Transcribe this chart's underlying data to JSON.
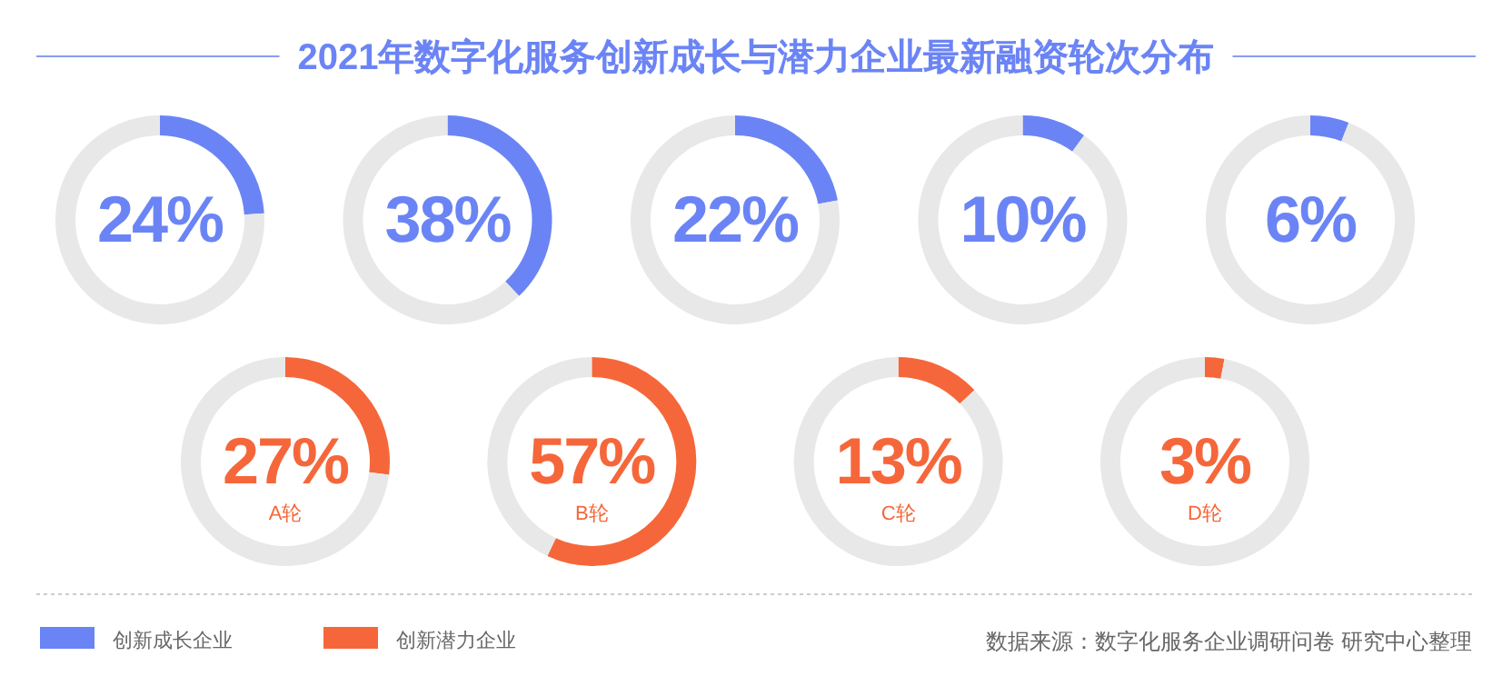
{
  "chart_data": [
    {
      "type": "other",
      "title": "2021年数字化服务创新成长与潜力企业最新融资轮次分布",
      "series": [
        {
          "name": "创新成长企业",
          "color": "#6b84f5"
        },
        {
          "name": "创新潜力企业",
          "color": "#f5673a"
        }
      ],
      "legend": "bottom left",
      "annotations": [
        "数据来源：数字化服务企业调研问卷 研究中心整理"
      ]
    },
    {
      "type": "donut",
      "categories": [
        null,
        null
      ],
      "values": [
        24,
        76
      ],
      "colors": [
        "#6b84f5",
        "#e8e8e8"
      ],
      "value_labels": [
        "24%",
        null
      ]
    },
    {
      "type": "donut",
      "categories": [
        null,
        null
      ],
      "values": [
        38,
        62
      ],
      "colors": [
        "#6b84f5",
        "#e8e8e8"
      ],
      "value_labels": [
        "38%",
        null
      ]
    },
    {
      "type": "donut",
      "categories": [
        null,
        null
      ],
      "values": [
        22,
        78
      ],
      "colors": [
        "#6b84f5",
        "#e8e8e8"
      ],
      "value_labels": [
        "22%",
        null
      ]
    },
    {
      "type": "donut",
      "categories": [
        null,
        null
      ],
      "values": [
        10,
        90
      ],
      "colors": [
        "#6b84f5",
        "#e8e8e8"
      ],
      "value_labels": [
        "10%",
        null
      ]
    },
    {
      "type": "donut",
      "categories": [
        null,
        null
      ],
      "values": [
        6,
        94
      ],
      "colors": [
        "#6b84f5",
        "#e8e8e8"
      ],
      "value_labels": [
        "6%",
        null
      ]
    },
    {
      "type": "donut",
      "categories": [
        "A轮",
        null
      ],
      "values": [
        27,
        73
      ],
      "colors": [
        "#f5673a",
        "#e8e8e8"
      ],
      "value_labels": [
        "27%",
        null
      ]
    },
    {
      "type": "donut",
      "categories": [
        "B轮",
        null
      ],
      "values": [
        57,
        43
      ],
      "colors": [
        "#f5673a",
        "#e8e8e8"
      ],
      "value_labels": [
        "57%",
        null
      ]
    },
    {
      "type": "donut",
      "categories": [
        "C轮",
        null
      ],
      "values": [
        13,
        87
      ],
      "colors": [
        "#f5673a",
        "#e8e8e8"
      ],
      "value_labels": [
        "13%",
        null
      ]
    },
    {
      "type": "donut",
      "categories": [
        "D轮",
        null
      ],
      "values": [
        3,
        97
      ],
      "colors": [
        "#f5673a",
        "#e8e8e8"
      ],
      "value_labels": [
        "3%",
        null
      ]
    }
  ]
}
